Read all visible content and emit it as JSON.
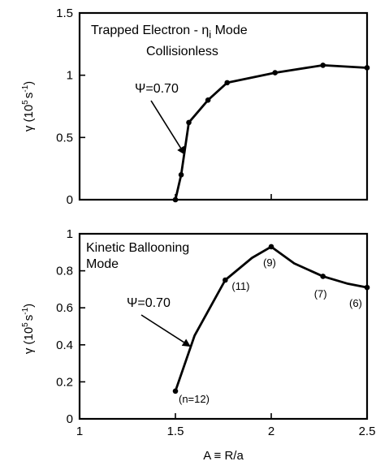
{
  "chart_data": [
    {
      "type": "line",
      "title": "Trapped Electron - η",
      "title_sub": "i",
      "title_suffix": " Mode",
      "subtitle": "Collisionless",
      "ylabel_main": "γ (10",
      "ylabel_sup": "5",
      "ylabel_unit": "s",
      "ylabel_unit_sup": "-1",
      "ylabel_close": ")",
      "xlim": [
        1,
        2.5
      ],
      "ylim": [
        0,
        1.5
      ],
      "yticks": [
        0,
        0.5,
        1,
        1.5
      ],
      "ytick_labels": [
        "0",
        "0.5",
        "1",
        "1.5"
      ],
      "series": [
        {
          "x": [
            1.5,
            1.53,
            1.57,
            1.67,
            1.77,
            2.02,
            2.27,
            2.5
          ],
          "y": [
            0.0,
            0.2,
            0.62,
            0.8,
            0.94,
            1.02,
            1.08,
            1.06
          ]
        }
      ],
      "annotations": [
        {
          "text": "Ψ=0.70",
          "target_x": 1.55,
          "target_y": 0.36
        }
      ]
    },
    {
      "type": "line",
      "title": "Kinetic Ballooning",
      "subtitle": "Mode",
      "ylabel_main": "γ (10",
      "ylabel_sup": "5",
      "ylabel_unit": "s",
      "ylabel_unit_sup": "-1",
      "ylabel_close": ")",
      "xlabel": "A ≡ R/a",
      "xlim": [
        1,
        2.5
      ],
      "ylim": [
        0,
        1
      ],
      "xticks": [
        1,
        1.5,
        2,
        2.5
      ],
      "xtick_labels": [
        "1",
        "1.5",
        "2",
        "2.5"
      ],
      "yticks": [
        0,
        0.2,
        0.4,
        0.6,
        0.8,
        1
      ],
      "ytick_labels": [
        "0",
        "0.2",
        "0.4",
        "0.6",
        "0.8",
        "1"
      ],
      "series": [
        {
          "x": [
            1.5,
            1.6,
            1.76,
            1.9,
            2.0,
            2.12,
            2.27,
            2.4,
            2.5
          ],
          "y": [
            0.15,
            0.45,
            0.75,
            0.87,
            0.93,
            0.84,
            0.77,
            0.73,
            0.71
          ],
          "markers": [
            {
              "x": 1.5,
              "y": 0.15,
              "label": "(n=12)"
            },
            {
              "x": 1.76,
              "y": 0.75,
              "label": "(11)"
            },
            {
              "x": 2.0,
              "y": 0.93,
              "label": "(9)"
            },
            {
              "x": 2.27,
              "y": 0.77,
              "label": "(7)"
            },
            {
              "x": 2.5,
              "y": 0.71,
              "label": "(6)"
            }
          ]
        }
      ],
      "annotations": [
        {
          "text": "Ψ=0.70",
          "target_x": 1.58,
          "target_y": 0.39
        }
      ]
    }
  ]
}
